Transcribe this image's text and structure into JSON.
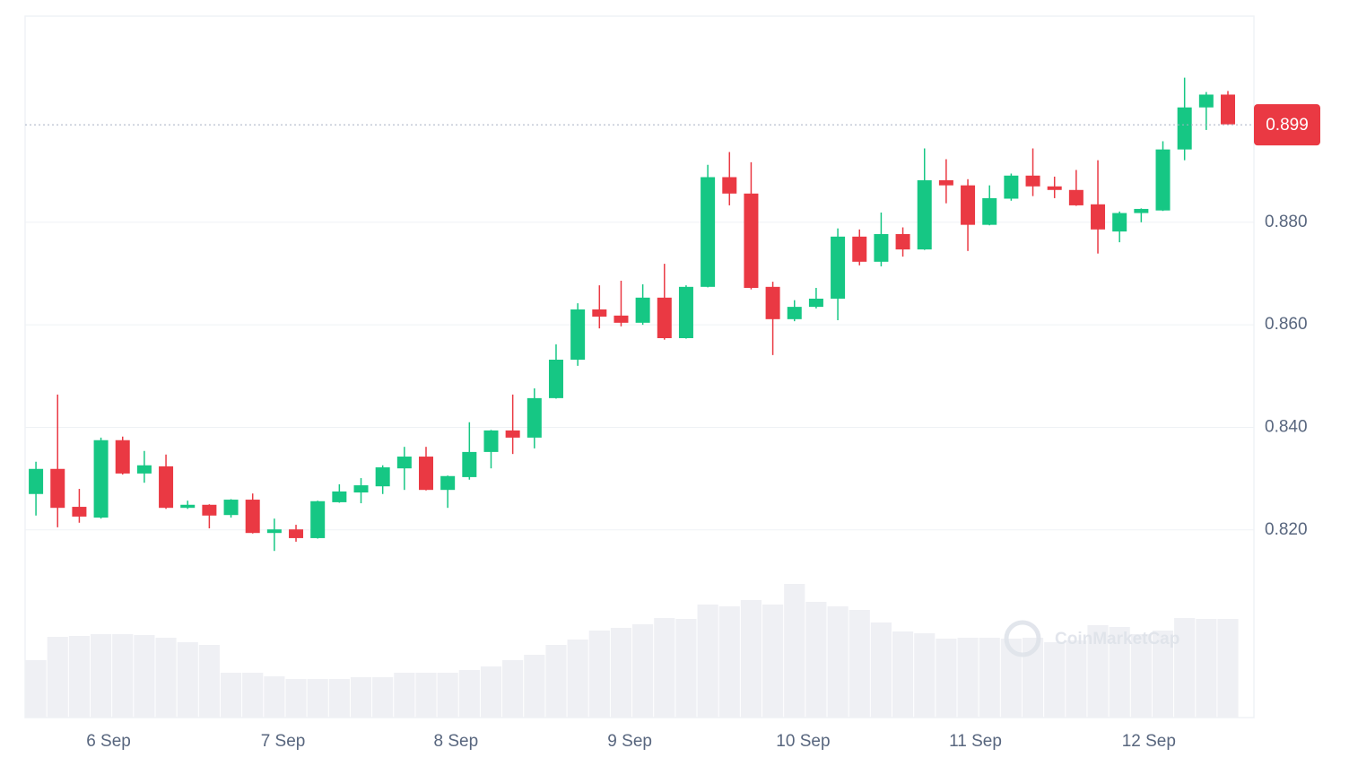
{
  "chart_data": {
    "type": "candlestick",
    "open": [
      0.827,
      0.8319,
      0.8245,
      0.8224,
      0.8375,
      0.831,
      0.8324,
      0.8243,
      0.8249,
      0.8229,
      0.8259,
      0.8194,
      0.8201,
      0.8184,
      0.8254,
      0.8273,
      0.8285,
      0.832,
      0.8343,
      0.8278,
      0.8303,
      0.8352,
      0.8394,
      0.838,
      0.8457,
      0.8532,
      0.863,
      0.8618,
      0.8604,
      0.8653,
      0.8574,
      0.8674,
      0.8888,
      0.8856,
      0.8674,
      0.8611,
      0.8635,
      0.8651,
      0.8772,
      0.8723,
      0.8777,
      0.8747,
      0.8882,
      0.8872,
      0.8795,
      0.8846,
      0.8891,
      0.887,
      0.8863,
      0.8835,
      0.8782,
      0.8818,
      0.8823,
      0.8942,
      0.9024,
      0.9049
    ],
    "high": [
      0.8333,
      0.8464,
      0.828,
      0.838,
      0.8382,
      0.8354,
      0.8347,
      0.8257,
      0.825,
      0.826,
      0.8271,
      0.8222,
      0.821,
      0.8257,
      0.8289,
      0.8301,
      0.8326,
      0.8362,
      0.8362,
      0.8306,
      0.841,
      0.8395,
      0.8464,
      0.8476,
      0.8562,
      0.8642,
      0.8677,
      0.8686,
      0.8679,
      0.8719,
      0.8677,
      0.8912,
      0.8937,
      0.8917,
      0.8684,
      0.8648,
      0.8672,
      0.8788,
      0.8786,
      0.8819,
      0.879,
      0.8944,
      0.8923,
      0.8884,
      0.8872,
      0.8895,
      0.8944,
      0.8889,
      0.8902,
      0.8921,
      0.8821,
      0.8827,
      0.8958,
      0.9082,
      0.9054,
      0.9056
    ],
    "low": [
      0.8228,
      0.8205,
      0.8214,
      0.8222,
      0.8308,
      0.8292,
      0.8241,
      0.8241,
      0.8203,
      0.8224,
      0.8193,
      0.8159,
      0.8177,
      0.8183,
      0.8253,
      0.8252,
      0.827,
      0.8278,
      0.8277,
      0.8243,
      0.8298,
      0.832,
      0.8348,
      0.8359,
      0.8456,
      0.852,
      0.8593,
      0.8597,
      0.86,
      0.8571,
      0.8573,
      0.8673,
      0.8833,
      0.8669,
      0.8541,
      0.8607,
      0.8632,
      0.8609,
      0.8716,
      0.8714,
      0.8733,
      0.8746,
      0.8837,
      0.8744,
      0.8794,
      0.8842,
      0.8851,
      0.8847,
      0.8832,
      0.8739,
      0.8761,
      0.88,
      0.8822,
      0.8921,
      0.898,
      0.899
    ],
    "close": [
      0.8319,
      0.8243,
      0.8226,
      0.8375,
      0.831,
      0.8326,
      0.8243,
      0.8249,
      0.8228,
      0.8259,
      0.8194,
      0.8201,
      0.8184,
      0.8256,
      0.8275,
      0.8287,
      0.8322,
      0.8343,
      0.8278,
      0.8305,
      0.8352,
      0.8394,
      0.838,
      0.8457,
      0.8532,
      0.863,
      0.8616,
      0.8604,
      0.8653,
      0.8574,
      0.8674,
      0.8888,
      0.8856,
      0.8672,
      0.8611,
      0.8635,
      0.8651,
      0.8772,
      0.8723,
      0.8777,
      0.8747,
      0.8882,
      0.8872,
      0.8795,
      0.8847,
      0.8891,
      0.887,
      0.8863,
      0.8833,
      0.8786,
      0.8818,
      0.8826,
      0.8942,
      0.9024,
      0.9049,
      0.8991
    ],
    "volume": [
      64,
      90,
      91,
      93,
      93,
      92,
      89,
      84,
      81,
      50,
      50,
      46,
      43,
      43,
      43,
      45,
      45,
      50,
      50,
      50,
      53,
      57,
      64,
      70,
      81,
      87,
      97,
      100,
      104,
      111,
      110,
      126,
      124,
      131,
      126,
      149,
      129,
      124,
      120,
      106,
      96,
      94,
      88,
      89,
      89,
      88,
      89,
      84,
      86,
      103,
      101,
      93,
      97,
      111,
      110,
      110
    ],
    "up_color": "#16c784",
    "down_color": "#ea3943",
    "volume_color": "#eff0f4",
    "last_price": 0.899,
    "xlim": [
      -0.5,
      56.2
    ],
    "xticks": [
      {
        "value": 3.35,
        "label": "6 Sep"
      },
      {
        "value": 11.4,
        "label": "7 Sep"
      },
      {
        "value": 19.38,
        "label": "8 Sep"
      },
      {
        "value": 27.4,
        "label": "9 Sep"
      },
      {
        "value": 35.4,
        "label": "10 Sep"
      },
      {
        "value": 43.35,
        "label": "11 Sep"
      },
      {
        "value": 51.35,
        "label": "12 Sep"
      }
    ],
    "ylim": [
      0.7834,
      0.9202
    ],
    "yticks": [
      {
        "value": 0.82,
        "label": "0.820"
      },
      {
        "value": 0.84,
        "label": "0.840"
      },
      {
        "value": 0.86,
        "label": "0.860"
      },
      {
        "value": 0.88,
        "label": "0.880"
      }
    ],
    "grid": true,
    "watermark": "CoinMarketCap"
  }
}
